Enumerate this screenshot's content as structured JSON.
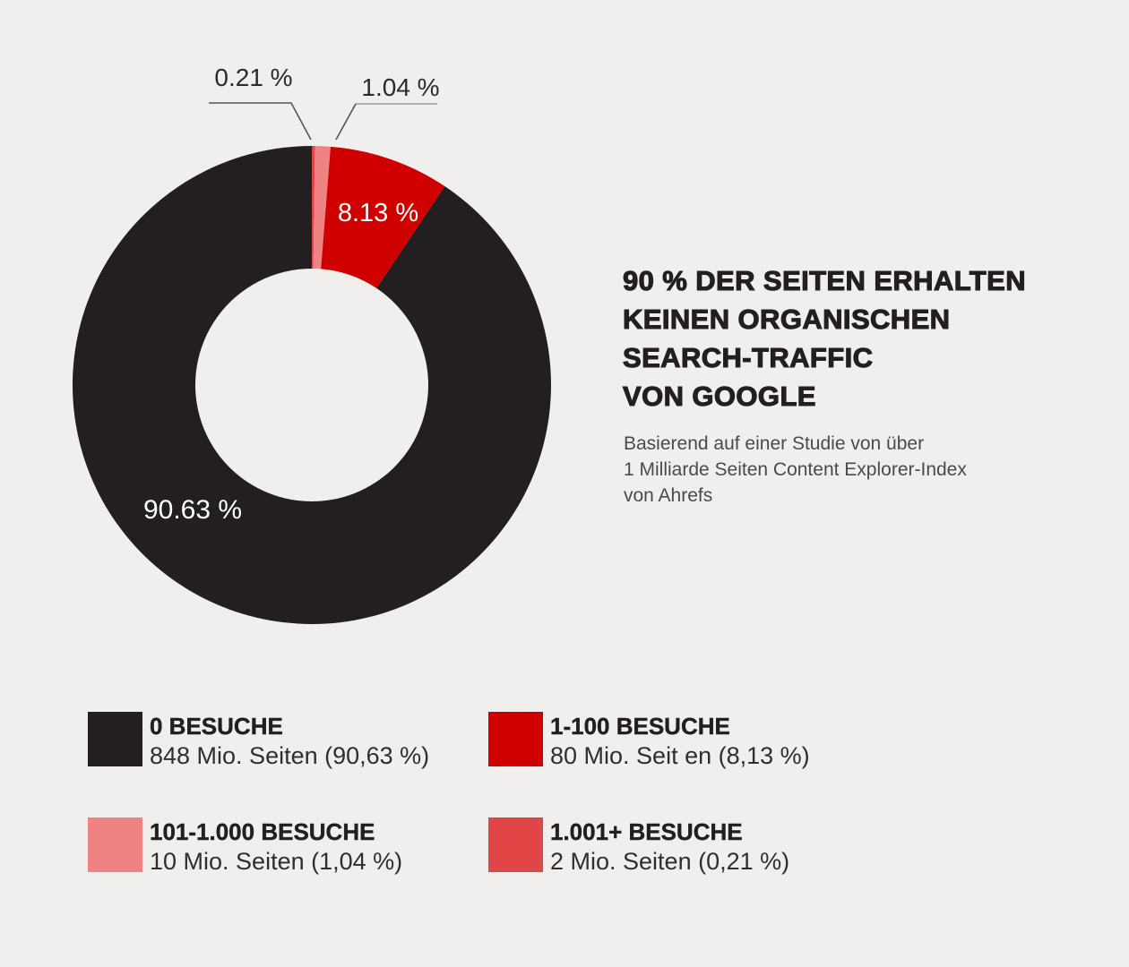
{
  "page": {
    "background": "#f0efed"
  },
  "header": {
    "title_lines": [
      "90 % DER SEITEN ERHALTEN",
      "KEINEN ORGANISCHEN",
      "SEARCH-TRAFFIC",
      "VON GOOGLE"
    ],
    "subtitle_lines": [
      "Basierend auf einer Studie von über",
      "1 Milliarde Seiten Content Explorer-Index",
      "von Ahrefs"
    ]
  },
  "chart_data": {
    "type": "pie",
    "variant": "donut",
    "title": "90 % DER SEITEN ERHALTEN KEINEN ORGANISCHEN SEARCH-TRAFFIC VON GOOGLE",
    "start_angle_deg": 0,
    "direction": "clockwise",
    "inner_radius_ratio": 0.49,
    "legend_position": "bottom",
    "slices": [
      {
        "label": "1.001+ BESUCHE",
        "value": 0.21,
        "color": "#e24545",
        "callout": "0.21 %"
      },
      {
        "label": "101-1.000 BESUCHE",
        "value": 1.04,
        "color": "#ef8282",
        "callout": "1.04 %"
      },
      {
        "label": "1-100 BESUCHE",
        "value": 8.13,
        "color": "#d10000",
        "inline_label": "8.13 %"
      },
      {
        "label": "0 BESUCHE",
        "value": 90.63,
        "color": "#231f20",
        "inline_label": "90.63 %"
      }
    ]
  },
  "legend": {
    "items": [
      {
        "label": "0 BESUCHE",
        "detail": "848 Mio. Seiten (90,63 %)",
        "color": "#231f20"
      },
      {
        "label": "1-100 BESUCHE",
        "detail": "80 Mio. Seit en (8,13 %)",
        "color": "#d10000"
      },
      {
        "label": "101-1.000 BESUCHE",
        "detail": "10 Mio. Seiten (1,04 %)",
        "color": "#ef8282"
      },
      {
        "label": "1.001+ BESUCHE",
        "detail": "2 Mio. Seiten (0,21 %)",
        "color": "#e24545"
      }
    ]
  }
}
